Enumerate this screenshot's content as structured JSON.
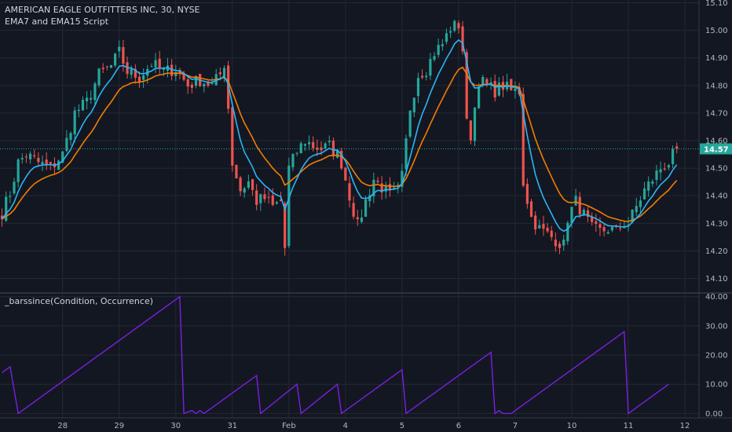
{
  "chart_data": [
    {
      "type": "candlestick",
      "title": "AMERICAN EAGLE OUTFITTERS INC, 30, NYSE",
      "subtitle": "EMA7 and EMA15 Script",
      "x_ticks": [
        {
          "label": "28",
          "bar": 15
        },
        {
          "label": "29",
          "bar": 29
        },
        {
          "label": "30",
          "bar": 43
        },
        {
          "label": "31",
          "bar": 57
        },
        {
          "label": "Feb",
          "bar": 71
        },
        {
          "label": "4",
          "bar": 85
        },
        {
          "label": "5",
          "bar": 99
        },
        {
          "label": "6",
          "bar": 113
        },
        {
          "label": "7",
          "bar": 127
        },
        {
          "label": "10",
          "bar": 141
        },
        {
          "label": "11",
          "bar": 155
        },
        {
          "label": "12",
          "bar": 169
        }
      ],
      "y_ticks": [
        "14.10",
        "14.20",
        "14.30",
        "14.40",
        "14.50",
        "14.60",
        "14.70",
        "14.80",
        "14.90",
        "15.00",
        "15.10"
      ],
      "ylim": [
        14.05,
        15.11
      ],
      "last_price": "14.57",
      "colors": {
        "up": "#26a69a",
        "down": "#ef5350",
        "ema7": "#29b6f6",
        "ema15": "#f57c00",
        "last": "#26a69a"
      },
      "close_path": [
        [
          0,
          14.34
        ],
        [
          2,
          14.41
        ],
        [
          4,
          14.52
        ],
        [
          6,
          14.55
        ],
        [
          9,
          14.52
        ],
        [
          12,
          14.5
        ],
        [
          15,
          14.55
        ],
        [
          18,
          14.7
        ],
        [
          21,
          14.74
        ],
        [
          24,
          14.84
        ],
        [
          27,
          14.87
        ],
        [
          29,
          14.92
        ],
        [
          31,
          14.85
        ],
        [
          34,
          14.83
        ],
        [
          37,
          14.88
        ],
        [
          40,
          14.85
        ],
        [
          43,
          14.86
        ],
        [
          46,
          14.8
        ],
        [
          49,
          14.82
        ],
        [
          52,
          14.8
        ],
        [
          54,
          14.84
        ],
        [
          55,
          14.88
        ],
        [
          56,
          14.72
        ],
        [
          57,
          14.52
        ],
        [
          59,
          14.42
        ],
        [
          61,
          14.45
        ],
        [
          63,
          14.38
        ],
        [
          65,
          14.39
        ],
        [
          67,
          14.36
        ],
        [
          69,
          14.38
        ],
        [
          70,
          14.21
        ],
        [
          71,
          14.5
        ],
        [
          73,
          14.56
        ],
        [
          75,
          14.6
        ],
        [
          77,
          14.58
        ],
        [
          79,
          14.57
        ],
        [
          81,
          14.58
        ],
        [
          83,
          14.55
        ],
        [
          84,
          14.52
        ],
        [
          86,
          14.4
        ],
        [
          88,
          14.29
        ],
        [
          90,
          14.38
        ],
        [
          92,
          14.46
        ],
        [
          94,
          14.43
        ],
        [
          96,
          14.4
        ],
        [
          98,
          14.42
        ],
        [
          99,
          14.47
        ],
        [
          101,
          14.72
        ],
        [
          103,
          14.84
        ],
        [
          105,
          14.86
        ],
        [
          107,
          14.92
        ],
        [
          109,
          14.95
        ],
        [
          111,
          15.01
        ],
        [
          113,
          15.02
        ],
        [
          114,
          14.93
        ],
        [
          115,
          14.66
        ],
        [
          116,
          14.62
        ],
        [
          118,
          14.82
        ],
        [
          120,
          14.8
        ],
        [
          122,
          14.78
        ],
        [
          124,
          14.8
        ],
        [
          126,
          14.78
        ],
        [
          128,
          14.78
        ],
        [
          129,
          14.45
        ],
        [
          131,
          14.32
        ],
        [
          133,
          14.28
        ],
        [
          135,
          14.26
        ],
        [
          137,
          14.24
        ],
        [
          139,
          14.22
        ],
        [
          140,
          14.32
        ],
        [
          142,
          14.38
        ],
        [
          144,
          14.33
        ],
        [
          146,
          14.28
        ],
        [
          148,
          14.27
        ],
        [
          150,
          14.28
        ],
        [
          152,
          14.27
        ],
        [
          154,
          14.3
        ],
        [
          155,
          14.3
        ],
        [
          157,
          14.36
        ],
        [
          159,
          14.42
        ],
        [
          161,
          14.46
        ],
        [
          163,
          14.5
        ],
        [
          165,
          14.52
        ],
        [
          167,
          14.57
        ]
      ]
    },
    {
      "type": "line",
      "title": "_barssince(Condition, Occurrence)",
      "y_ticks": [
        "0.00",
        "10.00",
        "20.00",
        "30.00",
        "40.00"
      ],
      "ylim": [
        -1.5,
        41
      ],
      "color": "#7b1fe0",
      "points": [
        [
          0,
          14
        ],
        [
          2,
          16
        ],
        [
          4,
          0
        ],
        [
          44,
          40
        ],
        [
          45,
          0
        ],
        [
          47,
          1
        ],
        [
          48,
          0
        ],
        [
          49,
          1
        ],
        [
          50,
          0
        ],
        [
          63,
          13
        ],
        [
          64,
          0
        ],
        [
          73,
          10
        ],
        [
          74,
          0
        ],
        [
          83,
          10
        ],
        [
          84,
          0
        ],
        [
          99,
          15
        ],
        [
          100,
          0
        ],
        [
          121,
          21
        ],
        [
          122,
          0
        ],
        [
          123,
          1
        ],
        [
          124,
          0
        ],
        [
          126,
          0
        ],
        [
          154,
          28
        ],
        [
          155,
          0
        ],
        [
          165,
          10
        ]
      ]
    }
  ]
}
